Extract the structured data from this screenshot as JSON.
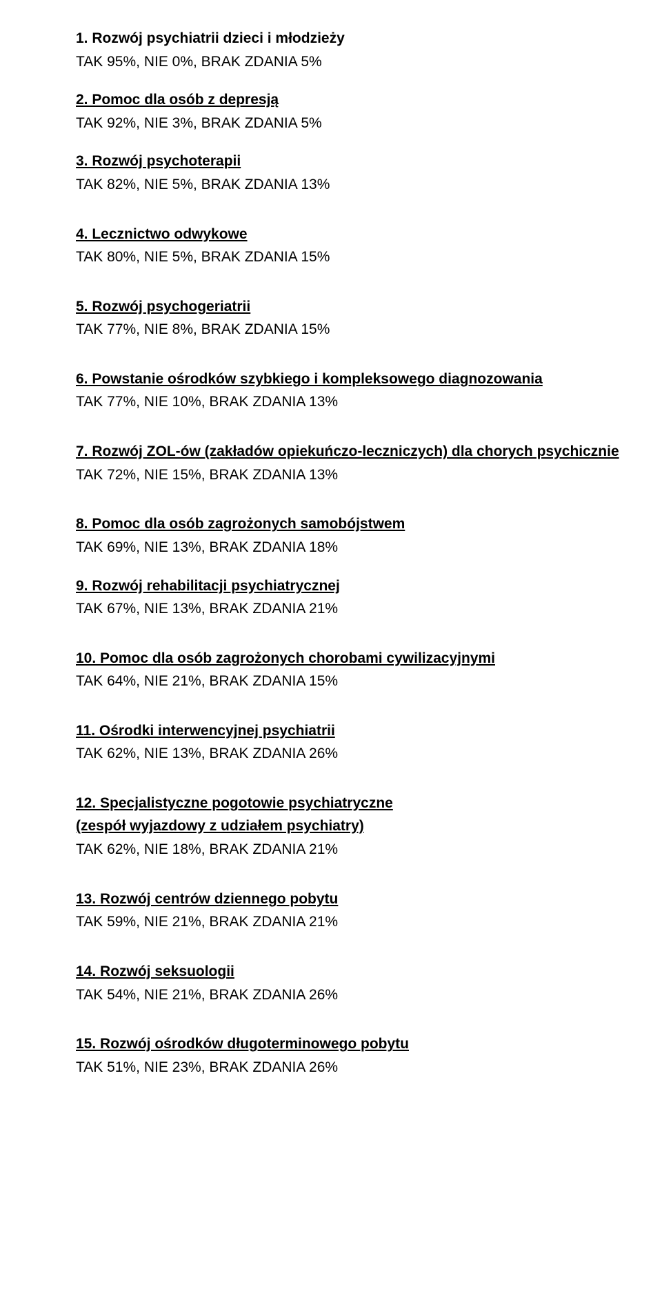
{
  "items": [
    {
      "num": "1.",
      "title": "Rozwój psychiatrii dzieci i młodzieży",
      "sub": null,
      "stats": "TAK 95%, NIE 0%, BRAK ZDANIA 5%",
      "underline_first": false,
      "tight": true
    },
    {
      "num": "2.",
      "title": "Pomoc dla osób z depresją",
      "sub": null,
      "stats": "TAK 92%, NIE 3%, BRAK ZDANIA 5%",
      "underline_first": true,
      "tight": true
    },
    {
      "num": "3.",
      "title": "Rozwój psychoterapii",
      "sub": null,
      "stats": "TAK 82%, NIE 5%, BRAK ZDANIA 13%",
      "underline_first": true,
      "tight": false
    },
    {
      "num": "4.",
      "title": "Lecznictwo odwykowe",
      "sub": null,
      "stats": "TAK 80%, NIE 5%, BRAK ZDANIA 15%",
      "underline_first": true,
      "tight": false
    },
    {
      "num": "5.",
      "title": "Rozwój psychogeriatrii",
      "sub": null,
      "stats": "TAK 77%, NIE 8%, BRAK ZDANIA 15%",
      "underline_first": true,
      "tight": false
    },
    {
      "num": "6.",
      "title": "Powstanie ośrodków szybkiego i kompleksowego diagnozowania",
      "sub": null,
      "stats": "TAK 77%, NIE 10%, BRAK ZDANIA 13%",
      "underline_first": true,
      "tight": false
    },
    {
      "num": "7.",
      "title": "Rozwój ZOL-ów (zakładów opiekuńczo-leczniczych) dla chorych psychicznie",
      "sub": null,
      "stats": "TAK 72%, NIE 15%, BRAK ZDANIA 13%",
      "underline_first": true,
      "tight": false
    },
    {
      "num": "8.",
      "title": "Pomoc dla osób zagrożonych samobójstwem",
      "sub": null,
      "stats": "TAK 69%, NIE 13%, BRAK ZDANIA 18%",
      "underline_first": true,
      "tight": true
    },
    {
      "num": "9.",
      "title": "Rozwój rehabilitacji psychiatrycznej",
      "sub": null,
      "stats": "TAK 67%, NIE 13%, BRAK ZDANIA 21%",
      "underline_first": true,
      "tight": false
    },
    {
      "num": "10.",
      "title": "Pomoc dla osób zagrożonych chorobami cywilizacyjnymi",
      "sub": null,
      "stats": "TAK 64%, NIE 21%, BRAK ZDANIA 15%",
      "underline_first": true,
      "tight": false
    },
    {
      "num": "11.",
      "title": "Ośrodki interwencyjnej psychiatrii",
      "sub": null,
      "stats": "TAK 62%, NIE 13%, BRAK ZDANIA 26%",
      "underline_first": true,
      "tight": false
    },
    {
      "num": "12.",
      "title": "Specjalistyczne pogotowie psychiatryczne",
      "sub": "(zespół wyjazdowy z udziałem psychiatry)",
      "stats": "TAK 62%, NIE 18%, BRAK ZDANIA 21%",
      "underline_first": true,
      "tight": false
    },
    {
      "num": "13.",
      "title": "Rozwój centrów dziennego pobytu",
      "sub": null,
      "stats": "TAK 59%, NIE 21%, BRAK ZDANIA 21%",
      "underline_first": true,
      "tight": false
    },
    {
      "num": "14.",
      "title": "Rozwój seksuologii",
      "sub": null,
      "stats": "TAK 54%, NIE 21%, BRAK ZDANIA 26%",
      "underline_first": true,
      "tight": false
    },
    {
      "num": "15.",
      "title": " Rozwój ośrodków długoterminowego pobytu",
      "sub": null,
      "stats": "TAK 51%, NIE 23%, BRAK ZDANIA 26%",
      "underline_first": true,
      "tight": false
    }
  ]
}
